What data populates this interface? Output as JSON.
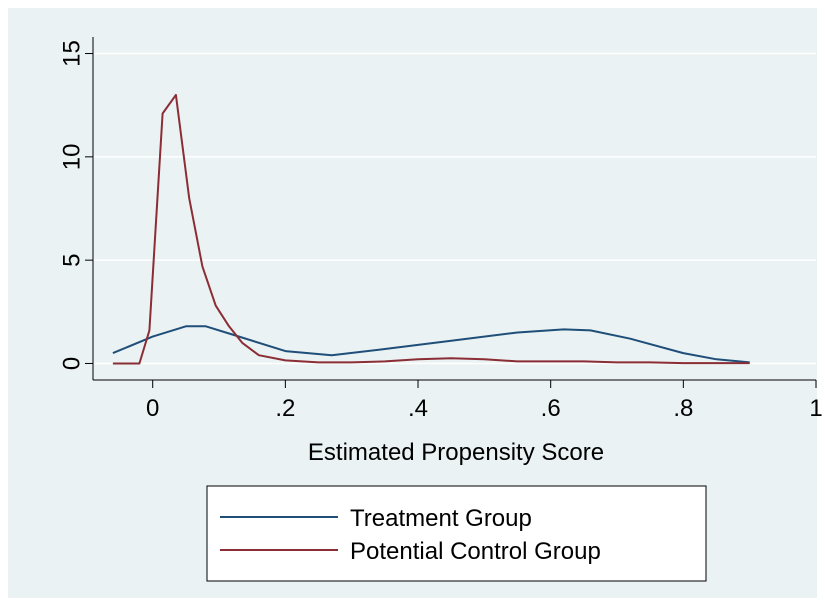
{
  "chart_data": {
    "type": "line",
    "title": "",
    "xlabel": "Estimated Propensity Score",
    "ylabel": "",
    "xlim": [
      -0.09,
      1.0
    ],
    "ylim": [
      -0.8,
      15.8
    ],
    "x_ticks": [
      0,
      0.2,
      0.4,
      0.6,
      0.8,
      1
    ],
    "x_tick_labels": [
      "0",
      ".2",
      ".4",
      ".6",
      ".8",
      "1"
    ],
    "y_ticks": [
      0,
      5,
      10,
      15
    ],
    "y_tick_labels": [
      "0",
      "5",
      "10",
      "15"
    ],
    "grid": "horizontal",
    "legend_position": "bottom",
    "series": [
      {
        "name": "Treatment Group",
        "color": "#1f4e79",
        "x": [
          -0.06,
          0.0,
          0.05,
          0.08,
          0.12,
          0.2,
          0.27,
          0.35,
          0.45,
          0.55,
          0.62,
          0.66,
          0.72,
          0.8,
          0.85,
          0.9
        ],
        "y": [
          0.5,
          1.3,
          1.8,
          1.8,
          1.4,
          0.6,
          0.4,
          0.7,
          1.1,
          1.5,
          1.65,
          1.6,
          1.2,
          0.5,
          0.2,
          0.05
        ]
      },
      {
        "name": "Potential Control Group",
        "color": "#8b2d35",
        "x": [
          -0.06,
          -0.02,
          -0.005,
          0.015,
          0.035,
          0.055,
          0.075,
          0.095,
          0.115,
          0.135,
          0.16,
          0.2,
          0.25,
          0.3,
          0.35,
          0.4,
          0.45,
          0.5,
          0.55,
          0.6,
          0.65,
          0.7,
          0.75,
          0.8,
          0.85,
          0.9
        ],
        "y": [
          0,
          0,
          1.6,
          12.1,
          13.0,
          8.0,
          4.7,
          2.8,
          1.8,
          1.0,
          0.4,
          0.15,
          0.05,
          0.05,
          0.1,
          0.2,
          0.25,
          0.2,
          0.1,
          0.1,
          0.1,
          0.05,
          0.05,
          0.02,
          0.02,
          0.02
        ]
      }
    ]
  }
}
